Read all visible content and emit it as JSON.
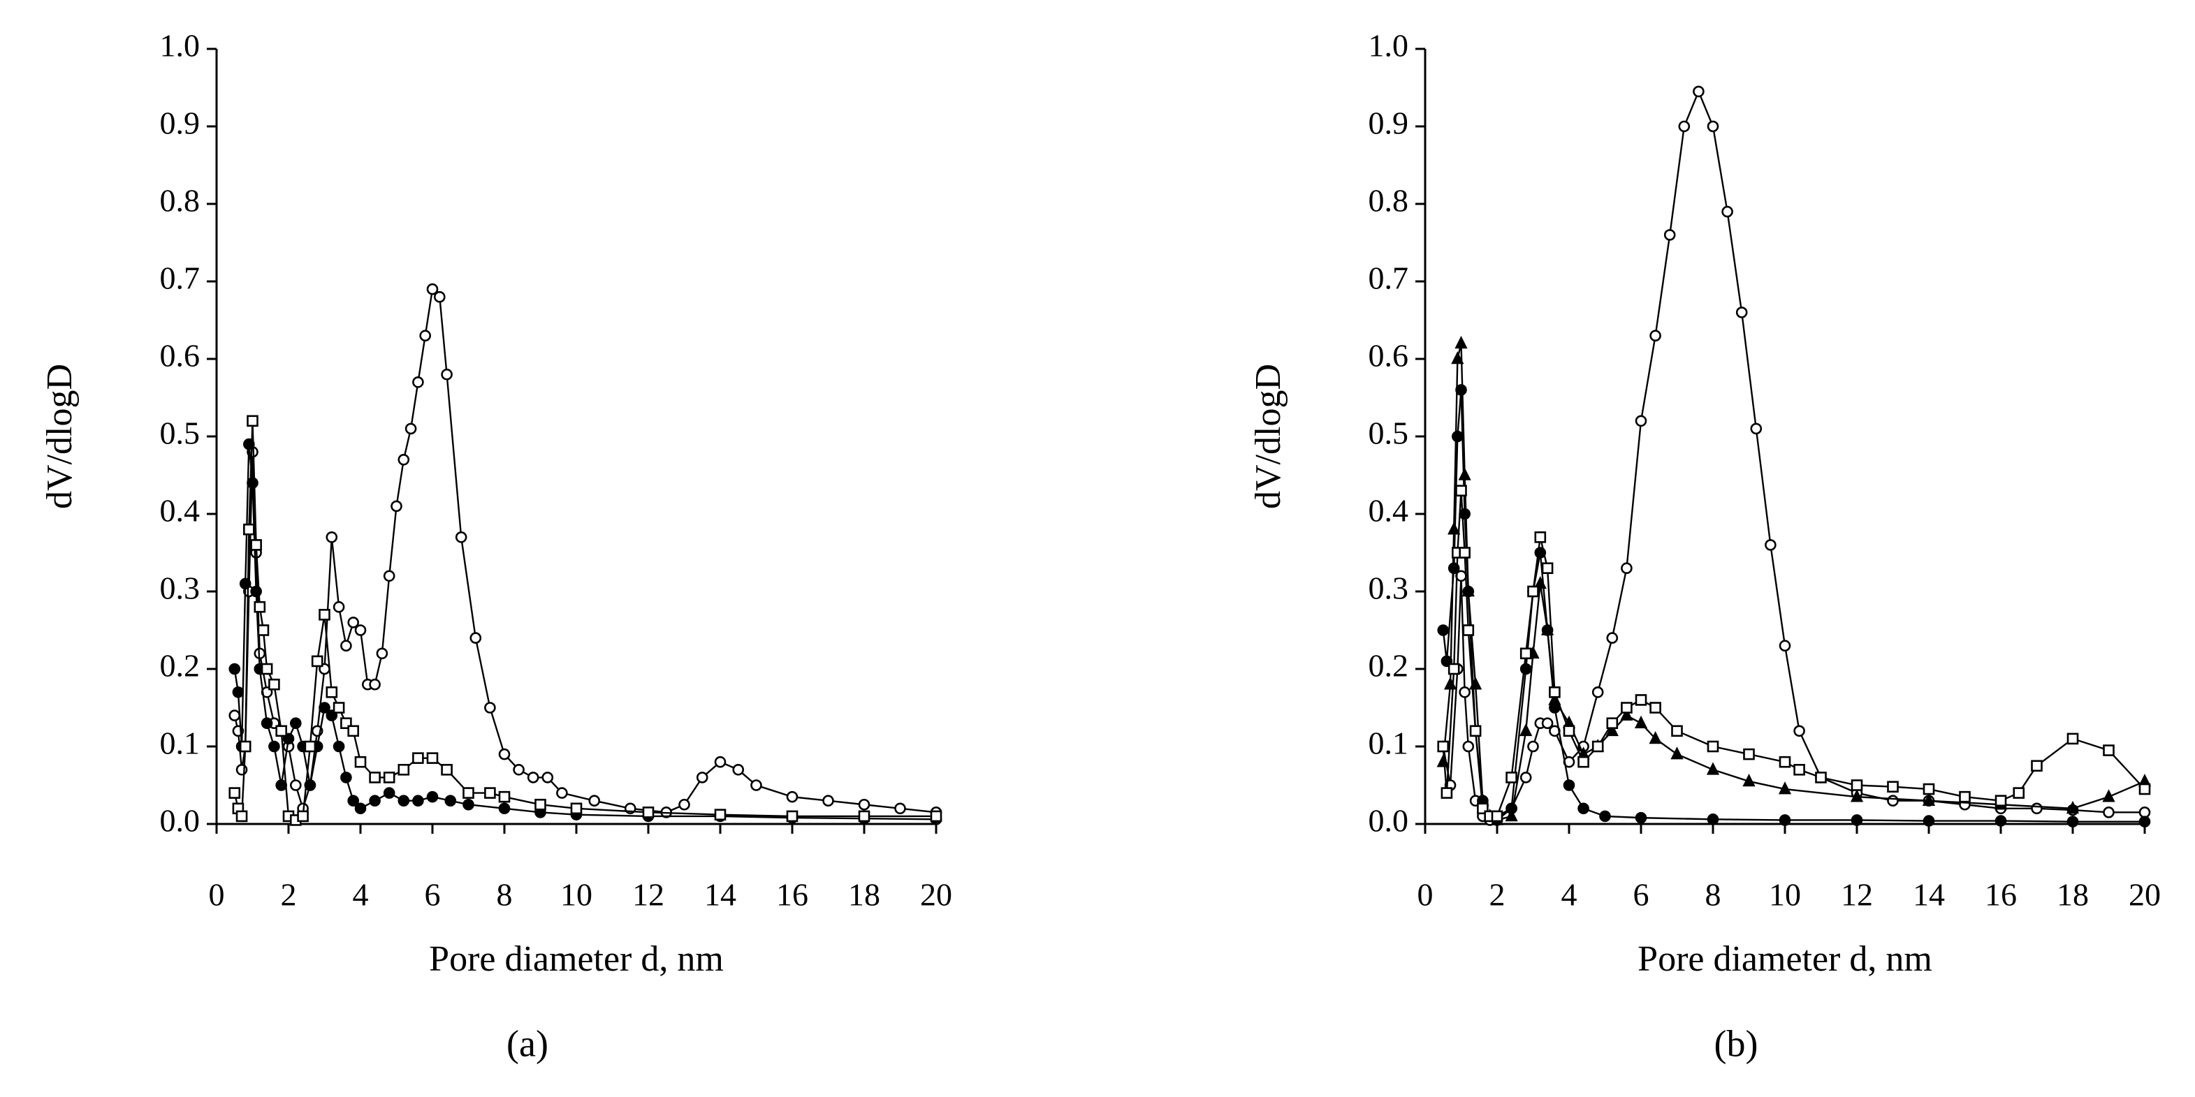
{
  "chart_data": [
    {
      "type": "line",
      "panel_label": "(a)",
      "xlabel": "Pore diameter d, nm",
      "ylabel": "dV/dlogD",
      "xlim": [
        0,
        20
      ],
      "ylim": [
        0,
        1
      ],
      "xticks": [
        0,
        2,
        4,
        6,
        8,
        10,
        12,
        14,
        16,
        18,
        20
      ],
      "yticks": [
        {
          "value": 0,
          "label": "0.0"
        },
        0.1,
        0.2,
        0.3,
        0.4,
        0.5,
        0.6,
        0.7,
        0.8,
        0.9,
        {
          "value": 1,
          "label": "1.0"
        }
      ],
      "series": [
        {
          "marker": "open-circle",
          "color": "#000000",
          "x": [
            0.5,
            0.6,
            0.7,
            0.8,
            0.9,
            1.0,
            1.1,
            1.2,
            1.4,
            1.6,
            1.8,
            2.0,
            2.2,
            2.4,
            2.6,
            2.8,
            3.0,
            3.2,
            3.4,
            3.6,
            3.8,
            4.0,
            4.2,
            4.4,
            4.6,
            4.8,
            5.0,
            5.2,
            5.4,
            5.6,
            5.8,
            6.0,
            6.2,
            6.4,
            6.8,
            7.2,
            7.6,
            8.0,
            8.4,
            8.8,
            9.2,
            9.6,
            10.5,
            11.5,
            12.5,
            13.0,
            13.5,
            14.0,
            14.5,
            15.0,
            16,
            17,
            18,
            19,
            20
          ],
          "values": [
            0.14,
            0.12,
            0.07,
            0.1,
            0.3,
            0.48,
            0.35,
            0.22,
            0.17,
            0.13,
            0.12,
            0.1,
            0.05,
            0.02,
            0.05,
            0.12,
            0.2,
            0.37,
            0.28,
            0.23,
            0.26,
            0.25,
            0.18,
            0.18,
            0.22,
            0.32,
            0.41,
            0.47,
            0.51,
            0.57,
            0.63,
            0.69,
            0.68,
            0.58,
            0.37,
            0.24,
            0.15,
            0.09,
            0.07,
            0.06,
            0.06,
            0.04,
            0.03,
            0.02,
            0.015,
            0.025,
            0.06,
            0.08,
            0.07,
            0.05,
            0.035,
            0.03,
            0.025,
            0.02,
            0.015
          ]
        },
        {
          "marker": "filled-circle",
          "color": "#000000",
          "x": [
            0.5,
            0.6,
            0.7,
            0.8,
            0.9,
            1.0,
            1.1,
            1.2,
            1.4,
            1.6,
            1.8,
            2.0,
            2.2,
            2.4,
            2.6,
            2.8,
            3.0,
            3.2,
            3.4,
            3.6,
            3.8,
            4.0,
            4.4,
            4.8,
            5.2,
            5.6,
            6.0,
            6.5,
            7,
            8,
            9,
            10,
            12,
            14,
            16,
            18,
            20
          ],
          "values": [
            0.2,
            0.17,
            0.1,
            0.31,
            0.49,
            0.44,
            0.3,
            0.2,
            0.13,
            0.1,
            0.05,
            0.11,
            0.13,
            0.1,
            0.05,
            0.1,
            0.15,
            0.14,
            0.1,
            0.06,
            0.03,
            0.02,
            0.03,
            0.04,
            0.03,
            0.03,
            0.035,
            0.03,
            0.025,
            0.02,
            0.015,
            0.012,
            0.01,
            0.01,
            0.008,
            0.007,
            0.006
          ]
        },
        {
          "marker": "open-square",
          "color": "#000000",
          "x": [
            0.5,
            0.6,
            0.7,
            0.8,
            0.9,
            1.0,
            1.1,
            1.2,
            1.3,
            1.4,
            1.6,
            1.8,
            2.0,
            2.2,
            2.4,
            2.6,
            2.8,
            3.0,
            3.2,
            3.4,
            3.6,
            3.8,
            4.0,
            4.4,
            4.8,
            5.2,
            5.6,
            6.0,
            6.4,
            7.0,
            7.6,
            8.0,
            9,
            10,
            12,
            14,
            16,
            18,
            20
          ],
          "values": [
            0.04,
            0.02,
            0.01,
            0.1,
            0.38,
            0.52,
            0.36,
            0.28,
            0.25,
            0.2,
            0.18,
            0.12,
            0.01,
            0.005,
            0.01,
            0.1,
            0.21,
            0.27,
            0.17,
            0.15,
            0.13,
            0.12,
            0.08,
            0.06,
            0.06,
            0.07,
            0.085,
            0.085,
            0.07,
            0.04,
            0.04,
            0.035,
            0.025,
            0.02,
            0.015,
            0.012,
            0.01,
            0.01,
            0.01
          ]
        }
      ]
    },
    {
      "type": "line",
      "panel_label": "(b)",
      "xlabel": "Pore diameter d, nm",
      "ylabel": "dV/dlogD",
      "xlim": [
        0,
        20
      ],
      "ylim": [
        0,
        1
      ],
      "xticks": [
        0,
        2,
        4,
        6,
        8,
        10,
        12,
        14,
        16,
        18,
        20
      ],
      "yticks": [
        {
          "value": 0,
          "label": "0.0"
        },
        0.1,
        0.2,
        0.3,
        0.4,
        0.5,
        0.6,
        0.7,
        0.8,
        0.9,
        {
          "value": 1,
          "label": "1.0"
        }
      ],
      "series": [
        {
          "marker": "open-circle",
          "color": "#000000",
          "x": [
            0.5,
            0.7,
            0.9,
            1.0,
            1.1,
            1.2,
            1.4,
            1.6,
            1.8,
            2.0,
            2.4,
            2.8,
            3.0,
            3.2,
            3.4,
            3.6,
            4.0,
            4.4,
            4.8,
            5.2,
            5.6,
            6.0,
            6.4,
            6.8,
            7.2,
            7.6,
            8.0,
            8.4,
            8.8,
            9.2,
            9.6,
            10.0,
            10.4,
            11,
            12,
            13,
            14,
            15,
            16,
            17,
            18,
            19,
            20
          ],
          "values": [
            0.1,
            0.05,
            0.2,
            0.32,
            0.17,
            0.1,
            0.03,
            0.01,
            0.005,
            0.01,
            0.02,
            0.06,
            0.1,
            0.13,
            0.13,
            0.12,
            0.08,
            0.1,
            0.17,
            0.24,
            0.33,
            0.52,
            0.63,
            0.76,
            0.9,
            0.945,
            0.9,
            0.79,
            0.66,
            0.51,
            0.36,
            0.23,
            0.12,
            0.06,
            0.04,
            0.03,
            0.03,
            0.025,
            0.02,
            0.02,
            0.018,
            0.015,
            0.015
          ]
        },
        {
          "marker": "filled-circle",
          "color": "#000000",
          "x": [
            0.5,
            0.6,
            0.8,
            0.9,
            1.0,
            1.1,
            1.2,
            1.4,
            1.6,
            1.8,
            2.0,
            2.4,
            2.8,
            3.0,
            3.2,
            3.4,
            3.6,
            4.0,
            4.4,
            5,
            6,
            8,
            10,
            12,
            14,
            16,
            18,
            20
          ],
          "values": [
            0.25,
            0.21,
            0.33,
            0.5,
            0.56,
            0.4,
            0.3,
            0.12,
            0.03,
            0.01,
            0.005,
            0.02,
            0.2,
            0.3,
            0.35,
            0.25,
            0.15,
            0.05,
            0.02,
            0.01,
            0.008,
            0.006,
            0.005,
            0.005,
            0.004,
            0.004,
            0.003,
            0.003
          ]
        },
        {
          "marker": "filled-triangle",
          "color": "#000000",
          "x": [
            0.5,
            0.7,
            0.8,
            0.9,
            1.0,
            1.1,
            1.2,
            1.4,
            1.6,
            1.8,
            2.0,
            2.4,
            2.8,
            3.0,
            3.2,
            3.4,
            3.6,
            4.0,
            4.4,
            4.8,
            5.2,
            5.6,
            6.0,
            6.4,
            7,
            8,
            9,
            10,
            12,
            14,
            16,
            18,
            19,
            20
          ],
          "values": [
            0.08,
            0.18,
            0.38,
            0.6,
            0.62,
            0.45,
            0.3,
            0.18,
            0.03,
            0.01,
            0.005,
            0.01,
            0.12,
            0.22,
            0.31,
            0.25,
            0.16,
            0.13,
            0.09,
            0.1,
            0.12,
            0.14,
            0.13,
            0.11,
            0.09,
            0.07,
            0.055,
            0.045,
            0.035,
            0.03,
            0.025,
            0.02,
            0.035,
            0.055
          ]
        },
        {
          "marker": "open-square",
          "color": "#000000",
          "x": [
            0.5,
            0.6,
            0.8,
            0.9,
            1.0,
            1.1,
            1.2,
            1.4,
            1.6,
            1.8,
            2.0,
            2.4,
            2.8,
            3.0,
            3.2,
            3.4,
            3.6,
            4.0,
            4.4,
            4.8,
            5.2,
            5.6,
            6.0,
            6.4,
            7,
            8,
            9,
            10,
            10.4,
            11,
            12,
            13,
            14,
            15,
            16,
            16.5,
            17,
            18,
            19,
            20
          ],
          "values": [
            0.1,
            0.04,
            0.2,
            0.35,
            0.43,
            0.35,
            0.25,
            0.12,
            0.02,
            0.01,
            0.01,
            0.06,
            0.22,
            0.3,
            0.37,
            0.33,
            0.17,
            0.12,
            0.08,
            0.1,
            0.13,
            0.15,
            0.16,
            0.15,
            0.12,
            0.1,
            0.09,
            0.08,
            0.07,
            0.06,
            0.05,
            0.048,
            0.045,
            0.035,
            0.03,
            0.04,
            0.075,
            0.11,
            0.095,
            0.045
          ]
        }
      ]
    }
  ]
}
